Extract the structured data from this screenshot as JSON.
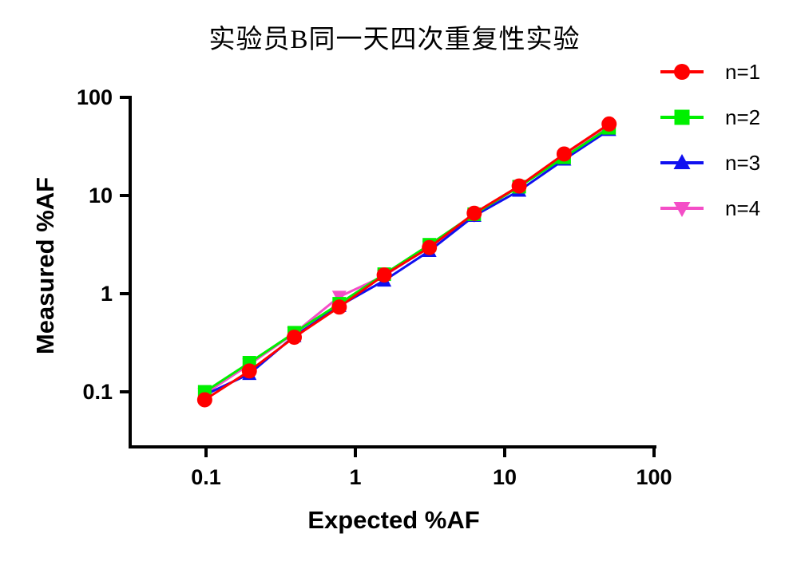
{
  "chart_data": {
    "type": "line",
    "title": "实验员B同一天四次重复性实验",
    "xlabel": "Expected %AF",
    "ylabel": "Measured %AF",
    "x_scale": "log10",
    "y_scale": "log10",
    "xlim": [
      0.031,
      104
    ],
    "ylim": [
      0.027,
      100
    ],
    "grid": false,
    "legend_position": "right",
    "axis_color": "#000000",
    "x_ticks": [
      0.1,
      1,
      10,
      100
    ],
    "x_tick_labels": [
      "0.1",
      "1",
      "10",
      "100"
    ],
    "y_ticks": [
      0.1,
      1,
      10,
      100
    ],
    "y_tick_labels": [
      "0.1",
      "1",
      "10",
      "100"
    ],
    "x": [
      0.098,
      0.195,
      0.39,
      0.78,
      1.56,
      3.13,
      6.25,
      12.5,
      25,
      50
    ],
    "series": [
      {
        "name": "n=1",
        "color": "#FF0000",
        "marker": "circle",
        "values": [
          0.083,
          0.163,
          0.36,
          0.73,
          1.55,
          2.95,
          6.6,
          12.5,
          26.5,
          53.5
        ]
      },
      {
        "name": "n=2",
        "color": "#00F000",
        "marker": "square",
        "values": [
          0.1,
          0.198,
          0.4,
          0.79,
          1.58,
          3.15,
          6.45,
          12.3,
          24.5,
          49.0
        ]
      },
      {
        "name": "n=3",
        "color": "#1010F0",
        "marker": "triangle-up",
        "values": [
          0.093,
          0.152,
          0.37,
          0.75,
          1.36,
          2.72,
          6.2,
          11.2,
          23.2,
          46.5
        ]
      },
      {
        "name": "n=4",
        "color": "#F44EC7",
        "marker": "triangle-down",
        "values": [
          0.095,
          0.19,
          0.395,
          0.93,
          1.52,
          3.0,
          6.3,
          12.4,
          25.0,
          50.0
        ]
      }
    ]
  }
}
